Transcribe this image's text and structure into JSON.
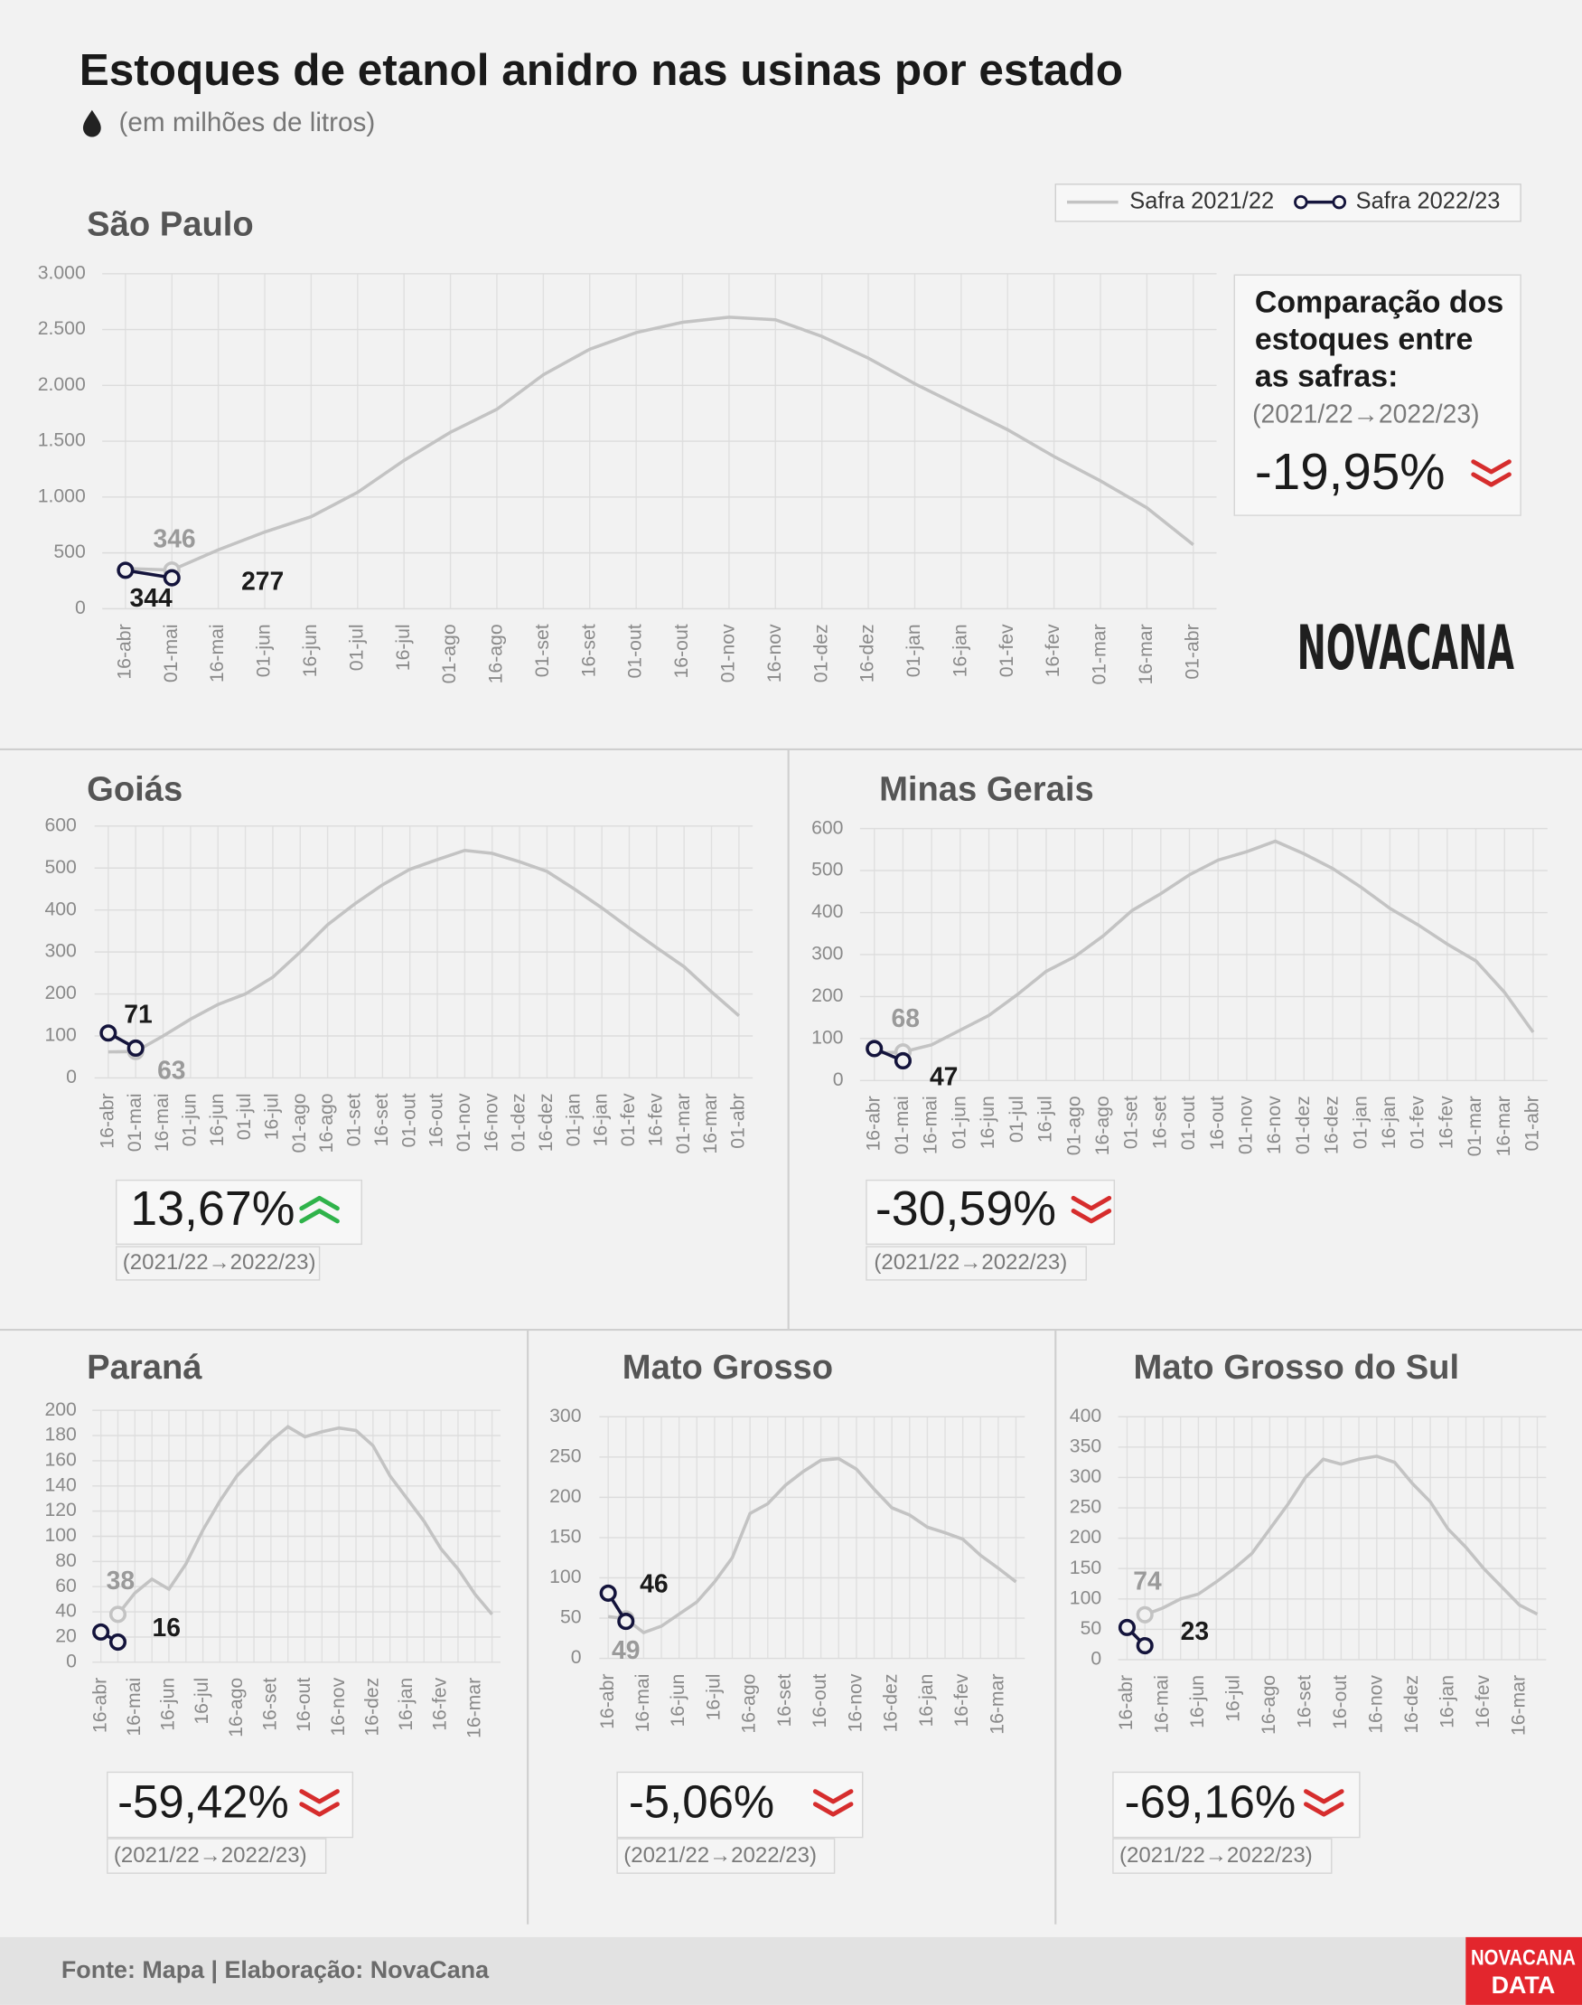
{
  "title": "Estoques de etanol anidro nas usinas por estado",
  "subtitle": "(em milhões de litros)",
  "logo": "NOVACANA",
  "source": "Fonte: Mapa | Elaboração: NovaCana",
  "badge": [
    "NOVACANA",
    "DATA"
  ],
  "chart_data": [
    {
      "type": "line",
      "title": "São Paulo",
      "categories": [
        "16-abr",
        "01-mai",
        "16-mai",
        "01-jun",
        "16-jun",
        "01-jul",
        "16-jul",
        "01-ago",
        "16-ago",
        "01-set",
        "16-set",
        "01-out",
        "16-out",
        "01-nov",
        "16-nov",
        "01-dez",
        "16-dez",
        "01-jan",
        "16-jan",
        "01-fev",
        "16-fev",
        "01-mar",
        "16-mar",
        "01-abr"
      ],
      "series": [
        {
          "name": "Safra 2021/22",
          "color": "#c3c3c3",
          "markers": false,
          "values": [
            360,
            346,
            527,
            687,
            824,
            1042,
            1328,
            1580,
            1786,
            2095,
            2324,
            2473,
            2565,
            2611,
            2588,
            2439,
            2244,
            2015,
            1809,
            1603,
            1363,
            1145,
            904,
            573
          ],
          "value_labels": [
            null,
            "346",
            null,
            null,
            null,
            null,
            null,
            null,
            null,
            null,
            null,
            null,
            null,
            null,
            null,
            null,
            null,
            null,
            null,
            null,
            null,
            null,
            null,
            null
          ]
        },
        {
          "name": "Safra 2022/23",
          "color": "#14143c",
          "markers": true,
          "values": [
            344,
            277,
            null,
            null,
            null,
            null,
            null,
            null,
            null,
            null,
            null,
            null,
            null,
            null,
            null,
            null,
            null,
            null,
            null,
            null,
            null,
            null,
            null,
            null
          ],
          "value_labels": [
            "344",
            "277",
            null,
            null,
            null,
            null,
            null,
            null,
            null,
            null,
            null,
            null,
            null,
            null,
            null,
            null,
            null,
            null,
            null,
            null,
            null,
            null,
            null,
            null
          ]
        }
      ],
      "ylim": [
        0,
        3000
      ],
      "yticks": [
        0,
        500,
        {
          "value": 1000,
          "label": "1.000"
        },
        {
          "value": 1500,
          "label": "1.500"
        },
        {
          "value": 2000,
          "label": "2.000"
        },
        {
          "value": 2500,
          "label": "2.500"
        },
        {
          "value": 3000,
          "label": "3.000"
        }
      ],
      "grid": true,
      "legend": "top-right",
      "comparison_title": [
        "Comparação dos",
        "estoques entre",
        "as safras:"
      ],
      "period": "(2021/22→2022/23)",
      "change": "-19,95%",
      "trend": "down"
    },
    {
      "type": "line",
      "title": "Goiás",
      "categories": [
        "16-abr",
        "01-mai",
        "16-mai",
        "01-jun",
        "16-jun",
        "01-jul",
        "16-jul",
        "01-ago",
        "16-ago",
        "01-set",
        "16-set",
        "01-out",
        "16-out",
        "01-nov",
        "16-nov",
        "01-dez",
        "16-dez",
        "01-jan",
        "16-jan",
        "01-fev",
        "16-fev",
        "01-mar",
        "16-mar",
        "01-abr"
      ],
      "series": [
        {
          "color": "#c3c3c3",
          "markers": false,
          "values": [
            62,
            63,
            100,
            140,
            175,
            200,
            240,
            300,
            365,
            415,
            460,
            497,
            520,
            542,
            535,
            515,
            492,
            450,
            405,
            357,
            310,
            265,
            205,
            148
          ],
          "value_labels": [
            null,
            "63",
            null,
            null,
            null,
            null,
            null,
            null,
            null,
            null,
            null,
            null,
            null,
            null,
            null,
            null,
            null,
            null,
            null,
            null,
            null,
            null,
            null,
            null
          ]
        },
        {
          "color": "#14143c",
          "markers": true,
          "values": [
            107,
            71,
            null,
            null,
            null,
            null,
            null,
            null,
            null,
            null,
            null,
            null,
            null,
            null,
            null,
            null,
            null,
            null,
            null,
            null,
            null,
            null,
            null,
            null
          ],
          "value_labels": [
            null,
            "71",
            null,
            null,
            null,
            null,
            null,
            null,
            null,
            null,
            null,
            null,
            null,
            null,
            null,
            null,
            null,
            null,
            null,
            null,
            null,
            null,
            null,
            null
          ]
        }
      ],
      "ylim": [
        0,
        600
      ],
      "yticks": [
        0,
        100,
        200,
        300,
        400,
        500,
        600
      ],
      "grid": true,
      "period": "(2021/22→2022/23)",
      "change": "13,67%",
      "trend": "up"
    },
    {
      "type": "line",
      "title": "Minas Gerais",
      "categories": [
        "16-abr",
        "01-mai",
        "16-mai",
        "01-jun",
        "16-jun",
        "01-jul",
        "16-jul",
        "01-ago",
        "16-ago",
        "01-set",
        "16-set",
        "01-out",
        "16-out",
        "01-nov",
        "16-nov",
        "01-dez",
        "16-dez",
        "01-jan",
        "16-jan",
        "01-fev",
        "16-fev",
        "01-mar",
        "16-mar",
        "01-abr"
      ],
      "series": [
        {
          "color": "#c3c3c3",
          "markers": false,
          "values": [
            65,
            68,
            85,
            120,
            155,
            205,
            260,
            295,
            345,
            405,
            445,
            490,
            525,
            545,
            570,
            540,
            505,
            460,
            410,
            370,
            325,
            285,
            210,
            115
          ],
          "value_labels": [
            null,
            "68",
            null,
            null,
            null,
            null,
            null,
            null,
            null,
            null,
            null,
            null,
            null,
            null,
            null,
            null,
            null,
            null,
            null,
            null,
            null,
            null,
            null,
            null
          ]
        },
        {
          "color": "#14143c",
          "markers": true,
          "values": [
            76,
            47,
            null,
            null,
            null,
            null,
            null,
            null,
            null,
            null,
            null,
            null,
            null,
            null,
            null,
            null,
            null,
            null,
            null,
            null,
            null,
            null,
            null,
            null
          ],
          "value_labels": [
            null,
            "47",
            null,
            null,
            null,
            null,
            null,
            null,
            null,
            null,
            null,
            null,
            null,
            null,
            null,
            null,
            null,
            null,
            null,
            null,
            null,
            null,
            null,
            null
          ]
        }
      ],
      "ylim": [
        0,
        600
      ],
      "yticks": [
        0,
        100,
        200,
        300,
        400,
        500,
        600
      ],
      "grid": true,
      "period": "(2021/22→2022/23)",
      "change": "-30,59%",
      "trend": "down"
    },
    {
      "type": "line",
      "title": "Paraná",
      "categories": [
        "16-abr",
        null,
        "16-mai",
        null,
        "16-jun",
        null,
        "16-jul",
        null,
        "16-ago",
        null,
        "16-set",
        null,
        "16-out",
        null,
        "16-nov",
        null,
        "16-dez",
        null,
        "16-jan",
        null,
        "16-fev",
        null,
        "16-mar",
        null
      ],
      "series": [
        {
          "color": "#c3c3c3",
          "markers": false,
          "values": [
            null,
            38,
            55,
            66,
            58,
            78,
            105,
            128,
            148,
            162,
            176,
            187,
            179,
            183,
            186,
            184,
            172,
            148,
            130,
            112,
            90,
            74,
            54,
            38
          ],
          "value_labels": [
            null,
            "38",
            null,
            null,
            null,
            null,
            null,
            null,
            null,
            null,
            null,
            null,
            null,
            null,
            null,
            null,
            null,
            null,
            null,
            null,
            null,
            null,
            null,
            null
          ]
        },
        {
          "color": "#14143c",
          "markers": true,
          "values": [
            24,
            16,
            null,
            null,
            null,
            null,
            null,
            null,
            null,
            null,
            null,
            null,
            null,
            null,
            null,
            null,
            null,
            null,
            null,
            null,
            null,
            null,
            null,
            null
          ],
          "value_labels": [
            null,
            "16",
            null,
            null,
            null,
            null,
            null,
            null,
            null,
            null,
            null,
            null,
            null,
            null,
            null,
            null,
            null,
            null,
            null,
            null,
            null,
            null,
            null,
            null
          ]
        }
      ],
      "ylim": [
        0,
        200
      ],
      "yticks": [
        0,
        20,
        40,
        60,
        80,
        100,
        120,
        140,
        160,
        180,
        200
      ],
      "grid": true,
      "period": "(2021/22→2022/23)",
      "change": "-59,42%",
      "trend": "down"
    },
    {
      "type": "line",
      "title": "Mato Grosso",
      "categories": [
        "16-abr",
        null,
        "16-mai",
        null,
        "16-jun",
        null,
        "16-jul",
        null,
        "16-ago",
        null,
        "16-set",
        null,
        "16-out",
        null,
        "16-nov",
        null,
        "16-dez",
        null,
        "16-jan",
        null,
        "16-fev",
        null,
        "16-mar",
        null
      ],
      "series": [
        {
          "color": "#c3c3c3",
          "markers": false,
          "values": [
            52,
            49,
            32,
            40,
            55,
            70,
            95,
            125,
            180,
            192,
            215,
            232,
            246,
            248,
            235,
            210,
            187,
            178,
            163,
            156,
            148,
            128,
            112,
            95
          ],
          "value_labels": [
            null,
            "49",
            null,
            null,
            null,
            null,
            null,
            null,
            null,
            null,
            null,
            null,
            null,
            null,
            null,
            null,
            null,
            null,
            null,
            null,
            null,
            null,
            null,
            null
          ]
        },
        {
          "color": "#14143c",
          "markers": true,
          "values": [
            81,
            46,
            null,
            null,
            null,
            null,
            null,
            null,
            null,
            null,
            null,
            null,
            null,
            null,
            null,
            null,
            null,
            null,
            null,
            null,
            null,
            null,
            null,
            null
          ],
          "value_labels": [
            null,
            "46",
            null,
            null,
            null,
            null,
            null,
            null,
            null,
            null,
            null,
            null,
            null,
            null,
            null,
            null,
            null,
            null,
            null,
            null,
            null,
            null,
            null,
            null
          ]
        }
      ],
      "ylim": [
        0,
        300
      ],
      "yticks": [
        0,
        50,
        100,
        150,
        200,
        250,
        300
      ],
      "grid": true,
      "period": "(2021/22→2022/23)",
      "change": "-5,06%",
      "trend": "down"
    },
    {
      "type": "line",
      "title": "Mato Grosso do Sul",
      "categories": [
        "16-abr",
        null,
        "16-mai",
        null,
        "16-jun",
        null,
        "16-jul",
        null,
        "16-ago",
        null,
        "16-set",
        null,
        "16-out",
        null,
        "16-nov",
        null,
        "16-dez",
        null,
        "16-jan",
        null,
        "16-fev",
        null,
        "16-mar",
        null
      ],
      "series": [
        {
          "color": "#c3c3c3",
          "markers": false,
          "values": [
            null,
            74,
            85,
            100,
            108,
            128,
            150,
            175,
            215,
            255,
            300,
            330,
            322,
            330,
            335,
            325,
            290,
            260,
            215,
            185,
            150,
            120,
            90,
            75
          ],
          "value_labels": [
            null,
            "74",
            null,
            null,
            null,
            null,
            null,
            null,
            null,
            null,
            null,
            null,
            null,
            null,
            null,
            null,
            null,
            null,
            null,
            null,
            null,
            null,
            null,
            null
          ]
        },
        {
          "color": "#14143c",
          "markers": true,
          "values": [
            53,
            23,
            null,
            null,
            null,
            null,
            null,
            null,
            null,
            null,
            null,
            null,
            null,
            null,
            null,
            null,
            null,
            null,
            null,
            null,
            null,
            null,
            null,
            null
          ],
          "value_labels": [
            null,
            "23",
            null,
            null,
            null,
            null,
            null,
            null,
            null,
            null,
            null,
            null,
            null,
            null,
            null,
            null,
            null,
            null,
            null,
            null,
            null,
            null,
            null,
            null
          ]
        }
      ],
      "ylim": [
        0,
        400
      ],
      "yticks": [
        0,
        50,
        100,
        150,
        200,
        250,
        300,
        350,
        400
      ],
      "grid": true,
      "period": "(2021/22→2022/23)",
      "change": "-69,16%",
      "trend": "down"
    }
  ]
}
